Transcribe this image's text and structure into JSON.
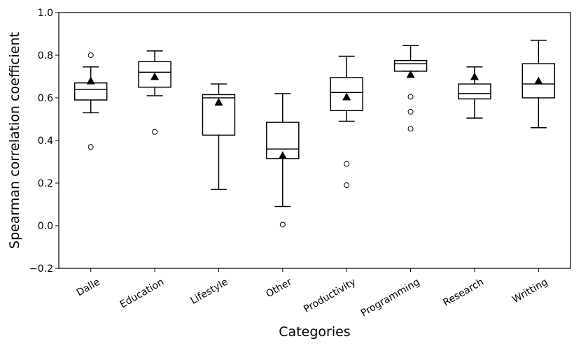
{
  "chart_data": {
    "type": "box",
    "title": "",
    "xlabel": "Categories",
    "ylabel": "Spearman correlation coefficient",
    "ylim": [
      -0.2,
      1.0
    ],
    "yticks": [
      -0.2,
      0.0,
      0.2,
      0.4,
      0.6,
      0.8,
      1.0
    ],
    "ytick_labels": [
      "−0.2",
      "0.0",
      "0.2",
      "0.4",
      "0.6",
      "0.8",
      "1.0"
    ],
    "grid": false,
    "legend": "none",
    "categories": [
      "Dalle",
      "Education",
      "Lifestyle",
      "Other",
      "Productivity",
      "Programming",
      "Research",
      "Writting"
    ],
    "boxes": [
      {
        "category": "Dalle",
        "whisker_low": 0.53,
        "q1": 0.59,
        "median": 0.64,
        "q3": 0.67,
        "whisker_high": 0.745,
        "mean": 0.68,
        "outliers": [
          0.8,
          0.37
        ]
      },
      {
        "category": "Education",
        "whisker_low": 0.61,
        "q1": 0.65,
        "median": 0.72,
        "q3": 0.77,
        "whisker_high": 0.82,
        "mean": 0.7,
        "outliers": [
          0.44
        ]
      },
      {
        "category": "Lifestyle",
        "whisker_low": 0.17,
        "q1": 0.425,
        "median": 0.6,
        "q3": 0.615,
        "whisker_high": 0.665,
        "mean": 0.58,
        "outliers": []
      },
      {
        "category": "Other",
        "whisker_low": 0.09,
        "q1": 0.315,
        "median": 0.36,
        "q3": 0.485,
        "whisker_high": 0.62,
        "mean": 0.33,
        "outliers": [
          0.005
        ]
      },
      {
        "category": "Productivity",
        "whisker_low": 0.49,
        "q1": 0.54,
        "median": 0.625,
        "q3": 0.695,
        "whisker_high": 0.795,
        "mean": 0.605,
        "outliers": [
          0.29,
          0.19
        ]
      },
      {
        "category": "Programming",
        "whisker_low": 0.725,
        "q1": 0.725,
        "median": 0.76,
        "q3": 0.775,
        "whisker_high": 0.845,
        "mean": 0.71,
        "outliers": [
          0.605,
          0.535,
          0.455
        ]
      },
      {
        "category": "Research",
        "whisker_low": 0.505,
        "q1": 0.595,
        "median": 0.62,
        "q3": 0.665,
        "whisker_high": 0.745,
        "mean": 0.7,
        "outliers": []
      },
      {
        "category": "Writting",
        "whisker_low": 0.46,
        "q1": 0.6,
        "median": 0.665,
        "q3": 0.76,
        "whisker_high": 0.87,
        "mean": 0.68,
        "outliers": []
      }
    ]
  }
}
